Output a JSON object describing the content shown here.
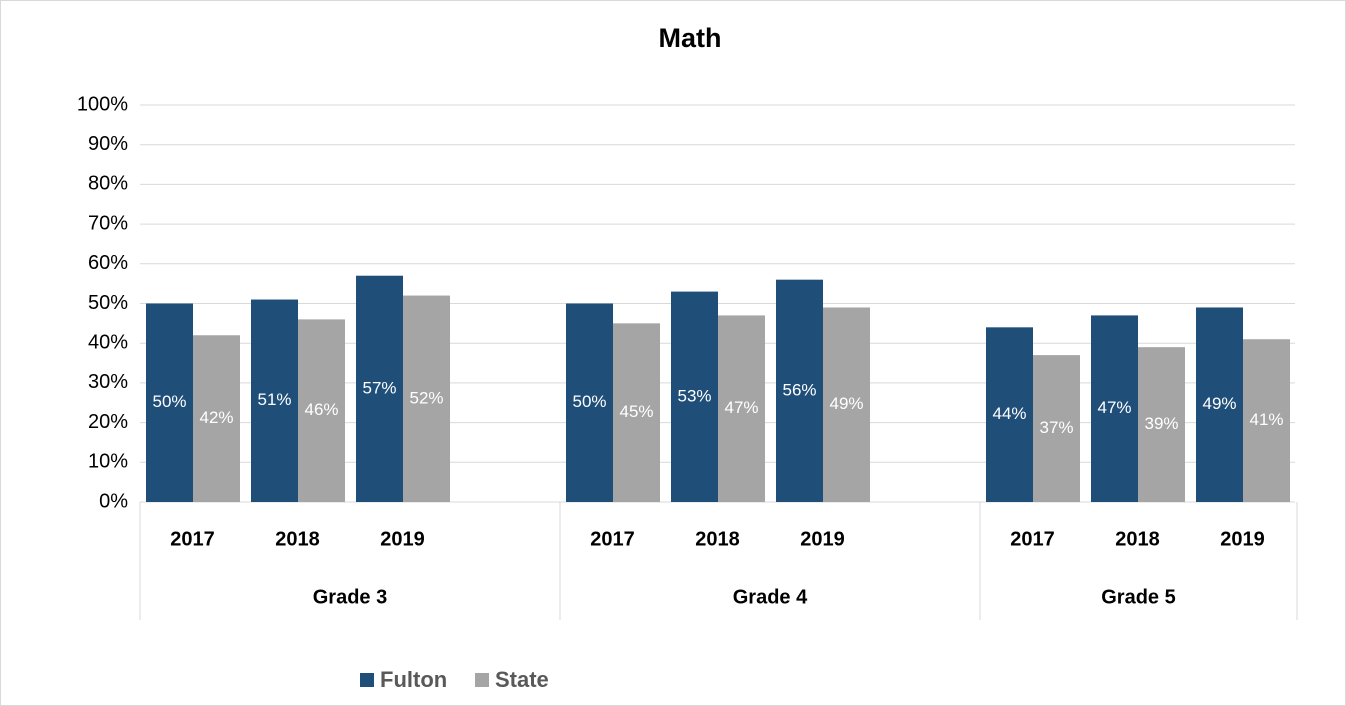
{
  "chart_data": {
    "type": "bar",
    "title": "Math",
    "categories": [
      "2017",
      "2018",
      "2019",
      null,
      "2017",
      "2018",
      "2019",
      null,
      "2017",
      "2018",
      "2019"
    ],
    "groups": [
      "Grade 3",
      "Grade 4",
      "Grade 5"
    ],
    "series": [
      {
        "name": "Fulton",
        "color": "#1f4e79",
        "values": [
          50,
          51,
          57,
          null,
          50,
          53,
          56,
          null,
          44,
          47,
          49
        ],
        "value_labels": [
          "50%",
          "51%",
          "57%",
          null,
          "50%",
          "53%",
          "56%",
          null,
          "44%",
          "47%",
          "49%"
        ]
      },
      {
        "name": "State",
        "color": "#a5a5a5",
        "values": [
          42,
          46,
          52,
          null,
          45,
          47,
          49,
          null,
          37,
          39,
          41
        ],
        "value_labels": [
          "42%",
          "46%",
          "52%",
          null,
          "45%",
          "47%",
          "49%",
          null,
          "37%",
          "39%",
          "41%"
        ]
      }
    ],
    "ylim": [
      0,
      100
    ],
    "yticks": [
      {
        "value": 0,
        "label": "0%"
      },
      {
        "value": 10,
        "label": "10%"
      },
      {
        "value": 20,
        "label": "20%"
      },
      {
        "value": 30,
        "label": "30%"
      },
      {
        "value": 40,
        "label": "40%"
      },
      {
        "value": 50,
        "label": "50%"
      },
      {
        "value": 60,
        "label": "60%"
      },
      {
        "value": 70,
        "label": "70%"
      },
      {
        "value": 80,
        "label": "80%"
      },
      {
        "value": 90,
        "label": "90%"
      },
      {
        "value": 100,
        "label": "100%"
      }
    ],
    "grid": true,
    "legend": "bottom"
  }
}
